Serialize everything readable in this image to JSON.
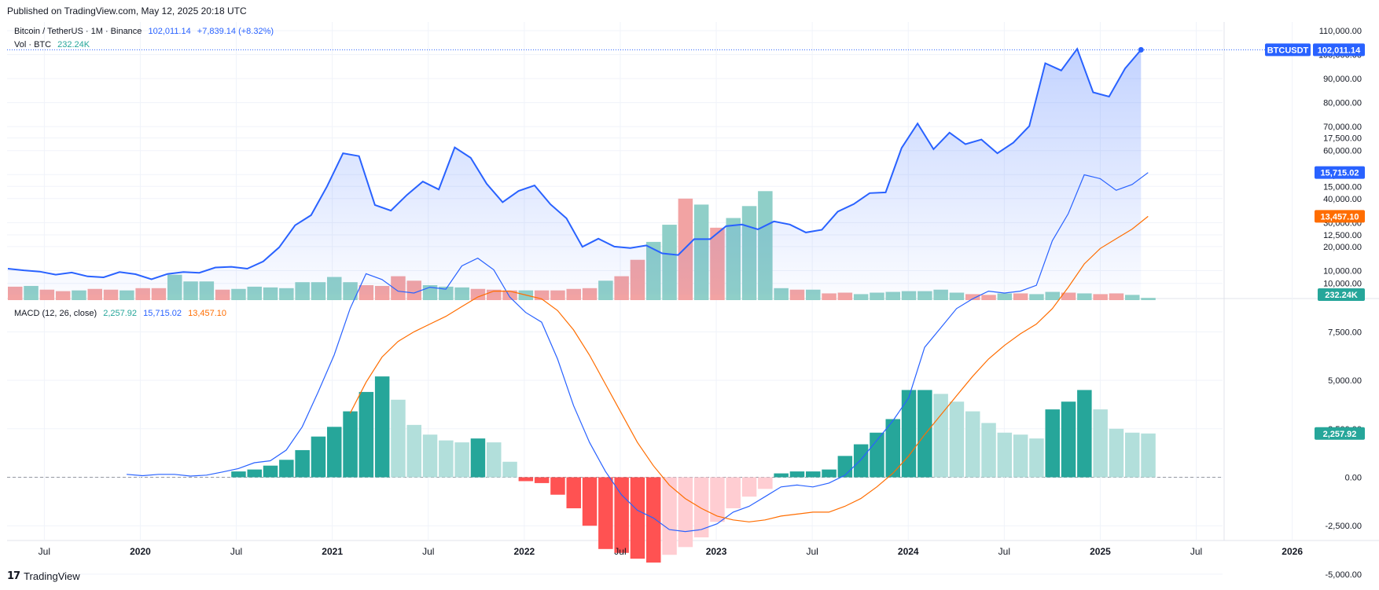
{
  "header": {
    "published": "Published on TradingView.com, May 12, 2025 20:18 UTC"
  },
  "legend": {
    "symbol": "Bitcoin / TetherUS · 1M · Binance",
    "price": "102,011.14",
    "change": "+7,839.14 (+8.32%)",
    "vol_label": "Vol · BTC",
    "vol_value": "232.24K",
    "macd_label": "MACD (12, 26, close)",
    "macd_hist": "2,257.92",
    "macd_line": "15,715.02",
    "macd_signal": "13,457.10"
  },
  "badges": {
    "ticker": "BTCUSDT",
    "price": "102,011.14",
    "volume": "232.24K",
    "hist": "2,257.92",
    "macd": "15,715.02",
    "signal": "13,457.10"
  },
  "footer": {
    "brand": "TradingView"
  },
  "colors": {
    "price_line": "#2962ff",
    "up": "#26a69a",
    "up_light": "#b2dfdb",
    "down": "#ff5252",
    "down_light": "#ffcdd2",
    "vol_up": "#8fcfc8",
    "vol_down": "#f2a3a3",
    "signal": "#ff6d00",
    "macd": "#2962ff"
  },
  "chart_data": [
    {
      "type": "area",
      "title": "Bitcoin / TetherUS · 1M · Binance",
      "x_ticks": [
        "Jul",
        "2020",
        "Jul",
        "2021",
        "Jul",
        "2022",
        "Jul",
        "2023",
        "Jul",
        "2024",
        "Jul",
        "2025",
        "Jul",
        "2026"
      ],
      "y_ticks": [
        "10,000.00",
        "20,000.00",
        "30,000.00",
        "40,000.00",
        "50,000.00",
        "60,000.00",
        "70,000.00",
        "80,000.00",
        "90,000.00",
        "100,000.00",
        "110,000.00"
      ],
      "ylim": [
        0,
        110000
      ],
      "start": "2019-06",
      "close": [
        10800,
        10100,
        9600,
        8300,
        9200,
        7600,
        7200,
        9400,
        8500,
        6400,
        8600,
        9400,
        9100,
        11300,
        11600,
        10800,
        13800,
        19700,
        28900,
        33100,
        45100,
        58900,
        57700,
        37300,
        35000,
        41500,
        47100,
        43800,
        61300,
        57000,
        46200,
        38500,
        43200,
        45500,
        37600,
        31800,
        19900,
        23300,
        20000,
        19400,
        20500,
        17200,
        16500,
        23100,
        23100,
        28500,
        29200,
        27200,
        30500,
        29200,
        25900,
        27000,
        34600,
        37700,
        42300,
        42600,
        61100,
        71300,
        60600,
        67500,
        62700,
        64600,
        58900,
        63300,
        70200,
        96400,
        93400,
        102400,
        84300,
        82500,
        94200,
        102011
      ]
    },
    {
      "type": "bar",
      "title": "Vol · BTC",
      "start": "2019-06",
      "values": [
        1.8,
        1.9,
        1.4,
        1.2,
        1.3,
        1.5,
        1.4,
        1.3,
        1.6,
        1.6,
        3.4,
        2.5,
        2.5,
        1.4,
        1.5,
        1.8,
        1.7,
        1.6,
        2.4,
        2.4,
        3.1,
        2.4,
        2.0,
        1.9,
        3.2,
        2.6,
        2.0,
        1.8,
        1.7,
        1.5,
        1.4,
        1.3,
        1.3,
        1.3,
        1.3,
        1.5,
        1.6,
        2.6,
        3.2,
        5.4,
        7.8,
        10.1,
        13.6,
        12.8,
        9.7,
        11.0,
        12.6,
        14.6,
        1.6,
        1.4,
        1.4,
        0.9,
        1.0,
        0.8,
        1.0,
        1.1,
        1.2,
        1.2,
        1.4,
        1.0,
        0.8,
        0.7,
        0.9,
        0.9,
        0.8,
        1.1,
        1.0,
        0.9,
        0.8,
        0.9,
        0.7,
        0.3
      ],
      "up": [
        false,
        true,
        false,
        false,
        true,
        false,
        false,
        true,
        false,
        false,
        true,
        true,
        true,
        false,
        true,
        true,
        true,
        true,
        true,
        true,
        true,
        true,
        false,
        false,
        false,
        false,
        true,
        true,
        true,
        false,
        false,
        false,
        true,
        false,
        false,
        false,
        false,
        true,
        false,
        false,
        true,
        true,
        false,
        true,
        false,
        true,
        true,
        true,
        true,
        false,
        true,
        false,
        false,
        true,
        true,
        true,
        true,
        true,
        true,
        true,
        false,
        false,
        true,
        false,
        true,
        true,
        false,
        true,
        false,
        false,
        true,
        true
      ]
    },
    {
      "type": "line",
      "title": "MACD (12, 26, close)",
      "y_ticks": [
        "-5,000.00",
        "-2,500.00",
        "0.00",
        "2,500.00",
        "5,000.00",
        "7,500.00",
        "10,000.00",
        "12,500.00",
        "15,000.00",
        "17,500.00"
      ],
      "ylim": [
        -6300,
        18000
      ],
      "start": "2019-06",
      "series": [
        {
          "name": "MACD",
          "values": [
            null,
            null,
            null,
            null,
            null,
            null,
            null,
            150,
            80,
            150,
            150,
            60,
            110,
            270,
            450,
            750,
            850,
            1400,
            2600,
            4400,
            6300,
            8700,
            10500,
            10200,
            9600,
            9500,
            9800,
            9700,
            10900,
            11300,
            10700,
            9300,
            8500,
            8000,
            6100,
            3700,
            1800,
            300,
            -900,
            -1700,
            -2100,
            -2700,
            -2800,
            -2700,
            -2400,
            -1800,
            -1500,
            -1000,
            -500,
            -400,
            -500,
            -300,
            100,
            900,
            1900,
            2900,
            4100,
            6700,
            7700,
            8700,
            9200,
            9600,
            9500,
            9600,
            9900,
            12200,
            13600,
            15600,
            15400,
            14800,
            15100,
            15715
          ]
        },
        {
          "name": "Signal",
          "values": [
            null,
            null,
            null,
            null,
            null,
            null,
            null,
            null,
            null,
            null,
            null,
            null,
            null,
            null,
            null,
            null,
            null,
            null,
            null,
            null,
            null,
            3300,
            4900,
            6200,
            7000,
            7500,
            7900,
            8300,
            8800,
            9300,
            9600,
            9600,
            9400,
            9200,
            8600,
            7600,
            6300,
            4800,
            3300,
            1800,
            600,
            -400,
            -1100,
            -1600,
            -2000,
            -2200,
            -2300,
            -2200,
            -2000,
            -1900,
            -1800,
            -1800,
            -1500,
            -1100,
            -500,
            200,
            1100,
            2200,
            3200,
            4200,
            5200,
            6100,
            6800,
            7400,
            7900,
            8700,
            9800,
            11000,
            11800,
            12300,
            12800,
            13457
          ]
        }
      ],
      "histogram": {
        "values": [
          null,
          null,
          null,
          null,
          null,
          null,
          null,
          null,
          null,
          null,
          null,
          null,
          null,
          null,
          300,
          400,
          600,
          900,
          1400,
          2100,
          2600,
          3400,
          4400,
          5200,
          4000,
          2700,
          2200,
          1900,
          1800,
          2000,
          1800,
          800,
          -200,
          -300,
          -900,
          -1600,
          -2500,
          -3700,
          -3900,
          -4200,
          -4400,
          -4000,
          -3600,
          -3100,
          -2300,
          -1600,
          -1000,
          -600,
          200,
          300,
          300,
          400,
          1100,
          1700,
          2300,
          3000,
          4500,
          4500,
          4300,
          3900,
          3400,
          2800,
          2300,
          2200,
          2000,
          3500,
          3900,
          4500,
          3500,
          2500,
          2300,
          2258
        ]
      }
    }
  ]
}
